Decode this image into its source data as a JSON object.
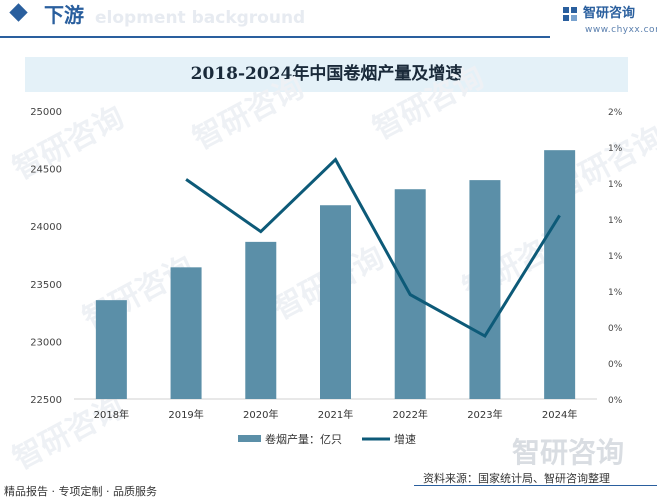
{
  "header": {
    "section_title": "下游",
    "ghost_text": "elopment background",
    "brand_name": "智研咨询",
    "brand_url": "www.chyxx.com"
  },
  "footer": {
    "left": "精品报告 · 专项定制 · 品质服务",
    "source": "资料来源：国家统计局、智研咨询整理"
  },
  "colors": {
    "bar": "#5b8fa8",
    "line": "#0d5a78",
    "accent": "#2a5f9e"
  },
  "chart_data": {
    "type": "bar",
    "title": "2018-2024年中国卷烟产量及增速",
    "categories": [
      "2018年",
      "2019年",
      "2020年",
      "2021年",
      "2022年",
      "2023年",
      "2024年"
    ],
    "series": [
      {
        "name": "卷烟产量：亿只",
        "kind": "bar",
        "axis": "left",
        "values": [
          23358,
          23643,
          23864,
          24182,
          24321,
          24400,
          24660
        ]
      },
      {
        "name": "增速",
        "kind": "line",
        "axis": "right",
        "values": [
          null,
          1.22,
          0.93,
          1.33,
          0.58,
          0.35,
          1.02
        ]
      }
    ],
    "y_left": {
      "min": 22500,
      "max": 25000,
      "step": 500,
      "ticks": [
        "22500",
        "23000",
        "23500",
        "24000",
        "24500",
        "25000"
      ]
    },
    "y_right": {
      "min": 0,
      "max": 1.6,
      "ticks": [
        "0%",
        "0%",
        "0%",
        "1%",
        "1%",
        "1%",
        "1%",
        "1%",
        "2%"
      ]
    },
    "legend_position": "bottom",
    "grid": false
  }
}
